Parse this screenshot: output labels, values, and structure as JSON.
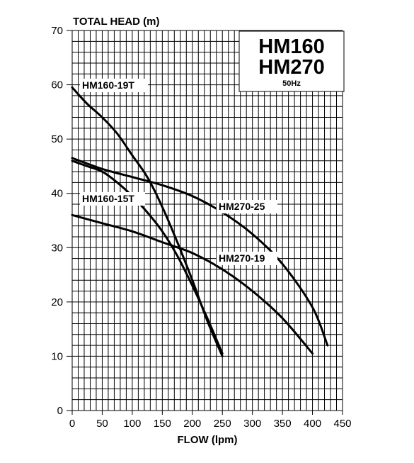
{
  "chart_data": {
    "type": "line",
    "title_lines": [
      "HM160",
      "HM270"
    ],
    "subtitle": "50Hz",
    "xlabel": "FLOW (lpm)",
    "ylabel": "TOTAL HEAD (m)",
    "xlim": [
      0,
      450
    ],
    "ylim": [
      0,
      70
    ],
    "x_ticks": [
      0,
      50,
      100,
      150,
      200,
      250,
      300,
      350,
      400,
      450
    ],
    "y_ticks": [
      0,
      10,
      20,
      30,
      40,
      50,
      60,
      70
    ],
    "grid": true,
    "series": [
      {
        "name": "HM160-19T",
        "x": [
          0,
          25,
          50,
          75,
          100,
          125,
          150,
          175,
          200,
          225,
          250
        ],
        "y": [
          59.5,
          56.5,
          54,
          51,
          47,
          43,
          37.5,
          31,
          24,
          16.5,
          10
        ]
      },
      {
        "name": "HM160-15T",
        "x": [
          0,
          25,
          50,
          75,
          100,
          125,
          150,
          175,
          200,
          225,
          250
        ],
        "y": [
          46,
          45,
          44,
          42,
          39.5,
          36.5,
          33,
          28.5,
          23,
          17,
          10.5
        ]
      },
      {
        "name": "HM270-25",
        "x": [
          0,
          50,
          100,
          150,
          200,
          250,
          300,
          350,
          400,
          425
        ],
        "y": [
          46.5,
          44.5,
          43,
          41.5,
          39.5,
          36.5,
          32.5,
          27,
          19,
          12
        ]
      },
      {
        "name": "HM270-19",
        "x": [
          0,
          50,
          100,
          150,
          200,
          250,
          300,
          350,
          400
        ],
        "y": [
          36,
          34.5,
          33,
          31,
          29,
          26,
          22,
          17,
          10.5
        ]
      }
    ]
  }
}
